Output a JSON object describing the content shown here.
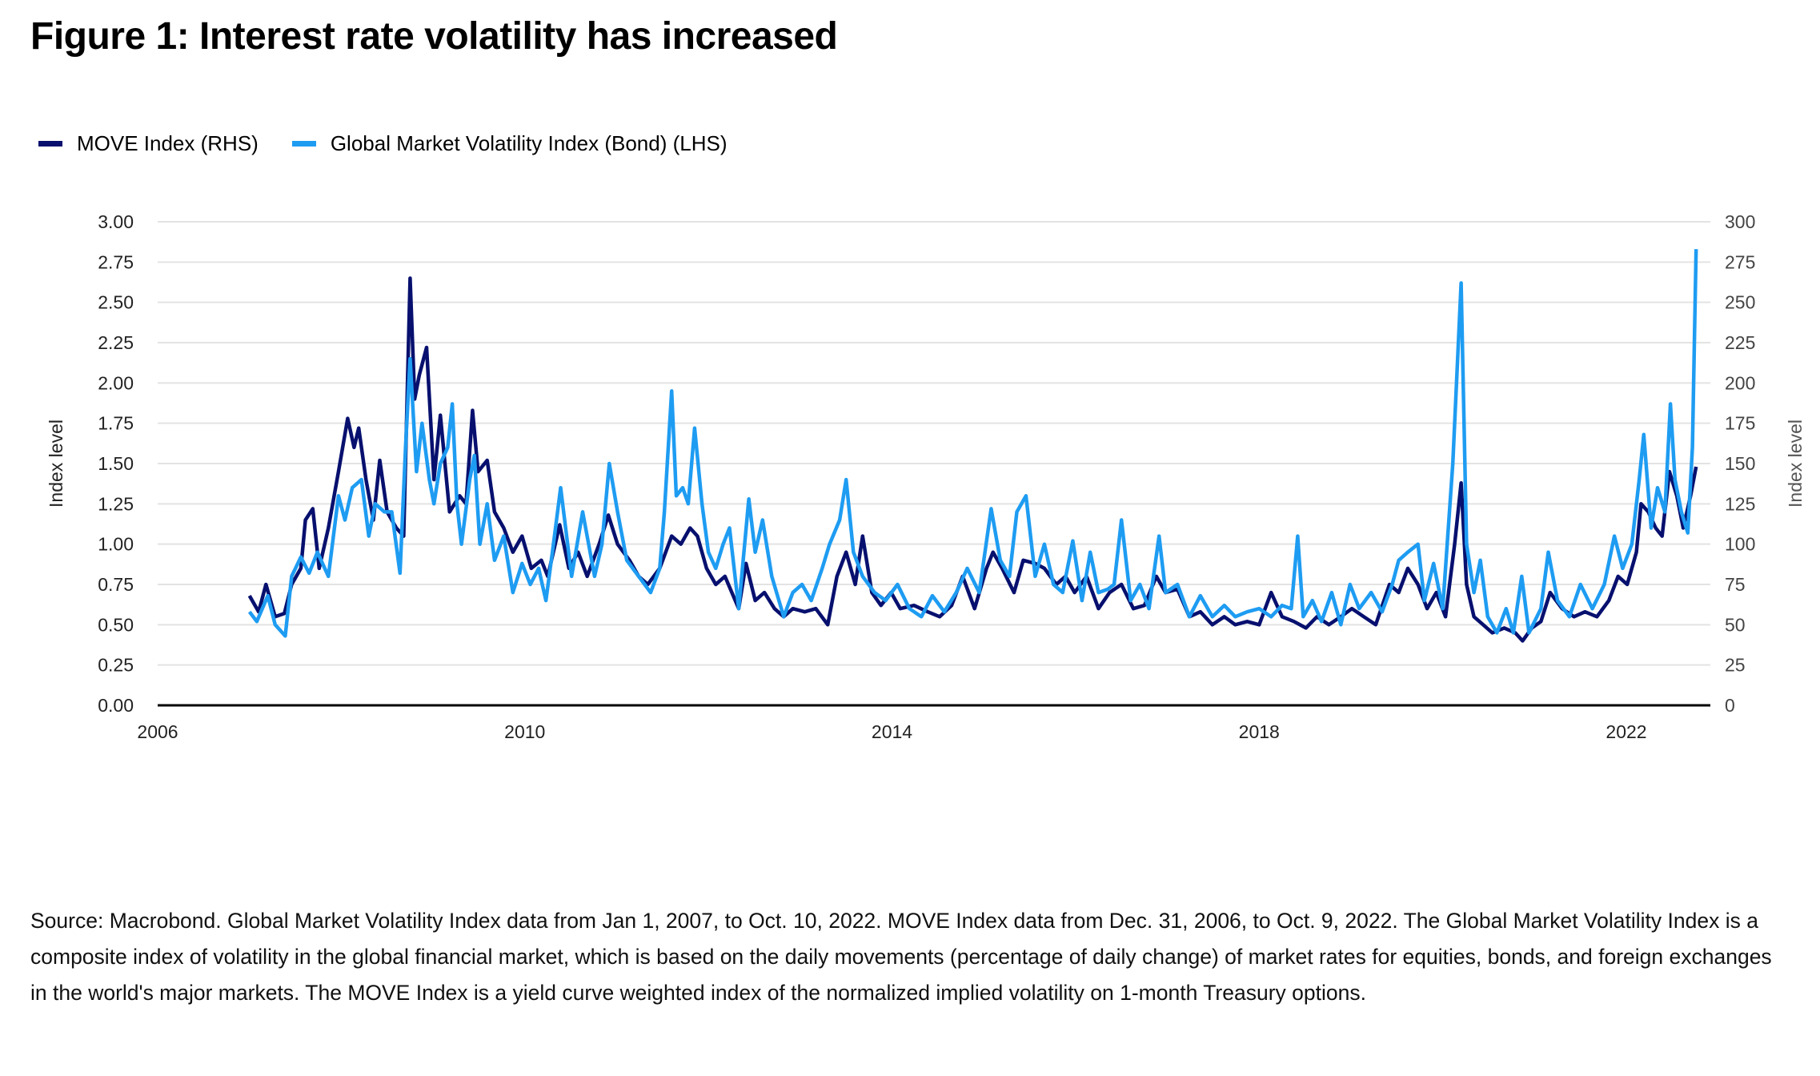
{
  "title": "Figure 1: Interest rate volatility has increased",
  "source": "Source: Macrobond. Global Market Volatility Index data from Jan 1, 2007, to Oct. 10, 2022. MOVE Index data from Dec. 31, 2006, to Oct. 9, 2022. The Global Market Volatility Index is a composite index of volatility in the global financial market, which is based on the daily movements (percentage of daily change) of market rates for equities, bonds, and foreign exchanges in the world's major markets. The MOVE Index is a yield curve weighted index of the normalized implied volatility on 1-month Treasury options.",
  "colors": {
    "move": "#07106e",
    "bond": "#1e9cf2",
    "grid": "#e3e3e3"
  },
  "chart_data": {
    "type": "line",
    "title": "Figure 1: Interest rate volatility has increased",
    "xlabel": "",
    "ylabel": "Index level",
    "y2label": "Index level",
    "xlim": [
      2006,
      2022.8
    ],
    "ylim": [
      0,
      3
    ],
    "y2lim": [
      0,
      300
    ],
    "xticks": [
      "2006",
      "2010",
      "2014",
      "2018",
      "2022"
    ],
    "yticks": [
      "0.00",
      "0.25",
      "0.50",
      "0.75",
      "1.00",
      "1.25",
      "1.50",
      "1.75",
      "2.00",
      "2.25",
      "2.50",
      "2.75",
      "3.00"
    ],
    "y2ticks": [
      "0",
      "25",
      "50",
      "75",
      "100",
      "125",
      "150",
      "175",
      "200",
      "225",
      "250",
      "275",
      "300"
    ],
    "grid": true,
    "legend_position": "top-left",
    "series": [
      {
        "name": "MOVE Index (RHS)",
        "axis": "right",
        "x": [
          2007.0,
          2007.1,
          2007.18,
          2007.28,
          2007.38,
          2007.46,
          2007.56,
          2007.61,
          2007.69,
          2007.76,
          2007.86,
          2007.97,
          2008.07,
          2008.14,
          2008.19,
          2008.27,
          2008.35,
          2008.42,
          2008.5,
          2008.6,
          2008.68,
          2008.75,
          2008.8,
          2008.85,
          2008.93,
          2009.01,
          2009.08,
          2009.18,
          2009.29,
          2009.36,
          2009.43,
          2009.49,
          2009.59,
          2009.67,
          2009.77,
          2009.87,
          2009.97,
          2010.07,
          2010.18,
          2010.25,
          2010.38,
          2010.48,
          2010.58,
          2010.68,
          2010.81,
          2010.91,
          2011.01,
          2011.14,
          2011.24,
          2011.34,
          2011.47,
          2011.6,
          2011.7,
          2011.8,
          2011.88,
          2011.98,
          2012.08,
          2012.18,
          2012.33,
          2012.41,
          2012.51,
          2012.61,
          2012.72,
          2012.82,
          2012.92,
          2013.05,
          2013.17,
          2013.3,
          2013.4,
          2013.5,
          2013.6,
          2013.68,
          2013.78,
          2013.88,
          2013.99,
          2014.09,
          2014.24,
          2014.39,
          2014.52,
          2014.65,
          2014.77,
          2014.9,
          2015.03,
          2015.1,
          2015.2,
          2015.33,
          2015.43,
          2015.56,
          2015.66,
          2015.79,
          2015.89,
          2015.99,
          2016.12,
          2016.25,
          2016.37,
          2016.5,
          2016.63,
          2016.75,
          2016.88,
          2016.98,
          2017.11,
          2017.24,
          2017.36,
          2017.49,
          2017.62,
          2017.74,
          2017.87,
          2018.0,
          2018.13,
          2018.25,
          2018.38,
          2018.51,
          2018.63,
          2018.76,
          2018.89,
          2019.01,
          2019.14,
          2019.27,
          2019.42,
          2019.52,
          2019.62,
          2019.73,
          2019.83,
          2019.93,
          2020.03,
          2020.13,
          2020.2,
          2020.26,
          2020.34,
          2020.44,
          2020.54,
          2020.67,
          2020.79,
          2020.87,
          2020.97,
          2021.07,
          2021.17,
          2021.3,
          2021.43,
          2021.55,
          2021.68,
          2021.81,
          2021.91,
          2022.01,
          2022.11,
          2022.16,
          2022.24,
          2022.32,
          2022.39,
          2022.47,
          2022.55,
          2022.62,
          2022.7,
          2022.76
        ],
        "values": [
          68,
          58,
          75,
          55,
          57,
          75,
          85,
          115,
          122,
          85,
          110,
          145,
          178,
          160,
          172,
          140,
          115,
          152,
          120,
          110,
          105,
          265,
          190,
          205,
          222,
          140,
          180,
          120,
          130,
          125,
          183,
          145,
          152,
          120,
          110,
          95,
          105,
          85,
          90,
          80,
          112,
          85,
          95,
          80,
          100,
          118,
          100,
          90,
          80,
          75,
          85,
          105,
          100,
          110,
          105,
          85,
          75,
          80,
          60,
          88,
          65,
          70,
          60,
          55,
          60,
          58,
          60,
          50,
          80,
          95,
          75,
          105,
          70,
          62,
          70,
          60,
          62,
          58,
          55,
          62,
          80,
          60,
          85,
          95,
          85,
          70,
          90,
          88,
          85,
          75,
          80,
          70,
          80,
          60,
          70,
          75,
          60,
          62,
          80,
          70,
          72,
          55,
          58,
          50,
          55,
          50,
          52,
          50,
          70,
          55,
          52,
          48,
          55,
          50,
          55,
          60,
          55,
          50,
          75,
          70,
          85,
          75,
          60,
          70,
          55,
          100,
          138,
          75,
          55,
          50,
          45,
          48,
          45,
          40,
          48,
          52,
          70,
          60,
          55,
          58,
          55,
          65,
          80,
          75,
          95,
          125,
          120,
          110,
          105,
          145,
          130,
          110,
          130,
          148
        ]
      },
      {
        "name": "Global Market Volatility Index (Bond) (LHS)",
        "axis": "left",
        "x": [
          2007.0,
          2007.08,
          2007.2,
          2007.28,
          2007.39,
          2007.46,
          2007.56,
          2007.65,
          2007.74,
          2007.86,
          2007.97,
          2008.04,
          2008.12,
          2008.22,
          2008.3,
          2008.37,
          2008.47,
          2008.55,
          2008.64,
          2008.7,
          2008.75,
          2008.82,
          2008.88,
          2008.96,
          2009.01,
          2009.08,
          2009.16,
          2009.21,
          2009.26,
          2009.31,
          2009.4,
          2009.45,
          2009.51,
          2009.59,
          2009.67,
          2009.77,
          2009.87,
          2009.97,
          2010.06,
          2010.15,
          2010.23,
          2010.3,
          2010.39,
          2010.51,
          2010.63,
          2010.76,
          2010.84,
          2010.92,
          2011.01,
          2011.11,
          2011.24,
          2011.37,
          2011.47,
          2011.52,
          2011.6,
          2011.65,
          2011.72,
          2011.78,
          2011.85,
          2011.93,
          2012.0,
          2012.08,
          2012.16,
          2012.23,
          2012.33,
          2012.44,
          2012.51,
          2012.59,
          2012.69,
          2012.82,
          2012.92,
          2013.02,
          2013.12,
          2013.24,
          2013.32,
          2013.43,
          2013.5,
          2013.58,
          2013.68,
          2013.81,
          2013.93,
          2014.06,
          2014.19,
          2014.32,
          2014.44,
          2014.57,
          2014.7,
          2014.82,
          2014.95,
          2015.08,
          2015.18,
          2015.28,
          2015.36,
          2015.46,
          2015.56,
          2015.66,
          2015.76,
          2015.86,
          2015.97,
          2016.07,
          2016.16,
          2016.25,
          2016.35,
          2016.42,
          2016.5,
          2016.6,
          2016.7,
          2016.8,
          2016.91,
          2016.98,
          2017.11,
          2017.24,
          2017.36,
          2017.49,
          2017.62,
          2017.74,
          2017.87,
          2018.0,
          2018.13,
          2018.25,
          2018.35,
          2018.42,
          2018.48,
          2018.58,
          2018.68,
          2018.79,
          2018.89,
          2018.99,
          2019.09,
          2019.22,
          2019.34,
          2019.45,
          2019.52,
          2019.62,
          2019.73,
          2019.8,
          2019.9,
          2020.0,
          2020.11,
          2020.2,
          2020.26,
          2020.34,
          2020.41,
          2020.49,
          2020.59,
          2020.69,
          2020.77,
          2020.86,
          2020.94,
          2021.07,
          2021.15,
          2021.25,
          2021.38,
          2021.5,
          2021.63,
          2021.76,
          2021.87,
          2021.96,
          2022.06,
          2022.14,
          2022.19,
          2022.27,
          2022.34,
          2022.42,
          2022.48,
          2022.53,
          2022.6,
          2022.67,
          2022.72,
          2022.76
        ],
        "values": [
          0.58,
          0.52,
          0.68,
          0.5,
          0.43,
          0.8,
          0.92,
          0.82,
          0.95,
          0.8,
          1.3,
          1.15,
          1.35,
          1.4,
          1.05,
          1.25,
          1.2,
          1.2,
          0.82,
          1.6,
          2.15,
          1.45,
          1.75,
          1.4,
          1.25,
          1.5,
          1.6,
          1.87,
          1.25,
          1.0,
          1.4,
          1.55,
          1.0,
          1.25,
          0.9,
          1.05,
          0.7,
          0.88,
          0.75,
          0.85,
          0.65,
          0.95,
          1.35,
          0.8,
          1.2,
          0.8,
          1.0,
          1.5,
          1.2,
          0.9,
          0.8,
          0.7,
          0.85,
          1.2,
          1.95,
          1.3,
          1.35,
          1.25,
          1.72,
          1.25,
          0.95,
          0.85,
          1.0,
          1.1,
          0.6,
          1.28,
          0.95,
          1.15,
          0.8,
          0.55,
          0.7,
          0.75,
          0.65,
          0.85,
          1.0,
          1.15,
          1.4,
          0.95,
          0.8,
          0.7,
          0.65,
          0.75,
          0.6,
          0.55,
          0.68,
          0.58,
          0.7,
          0.85,
          0.7,
          1.22,
          0.9,
          0.8,
          1.2,
          1.3,
          0.8,
          1.0,
          0.75,
          0.7,
          1.02,
          0.65,
          0.95,
          0.7,
          0.72,
          0.75,
          1.15,
          0.65,
          0.75,
          0.6,
          1.05,
          0.7,
          0.75,
          0.55,
          0.68,
          0.55,
          0.62,
          0.55,
          0.58,
          0.6,
          0.55,
          0.62,
          0.6,
          1.05,
          0.55,
          0.65,
          0.52,
          0.7,
          0.5,
          0.75,
          0.6,
          0.7,
          0.58,
          0.75,
          0.9,
          0.95,
          1.0,
          0.65,
          0.88,
          0.6,
          1.5,
          2.62,
          1.0,
          0.7,
          0.9,
          0.55,
          0.45,
          0.6,
          0.45,
          0.8,
          0.45,
          0.6,
          0.95,
          0.65,
          0.55,
          0.75,
          0.6,
          0.75,
          1.05,
          0.85,
          1.0,
          1.4,
          1.68,
          1.1,
          1.35,
          1.2,
          1.87,
          1.4,
          1.2,
          1.07,
          1.6,
          2.83
        ]
      }
    ]
  }
}
